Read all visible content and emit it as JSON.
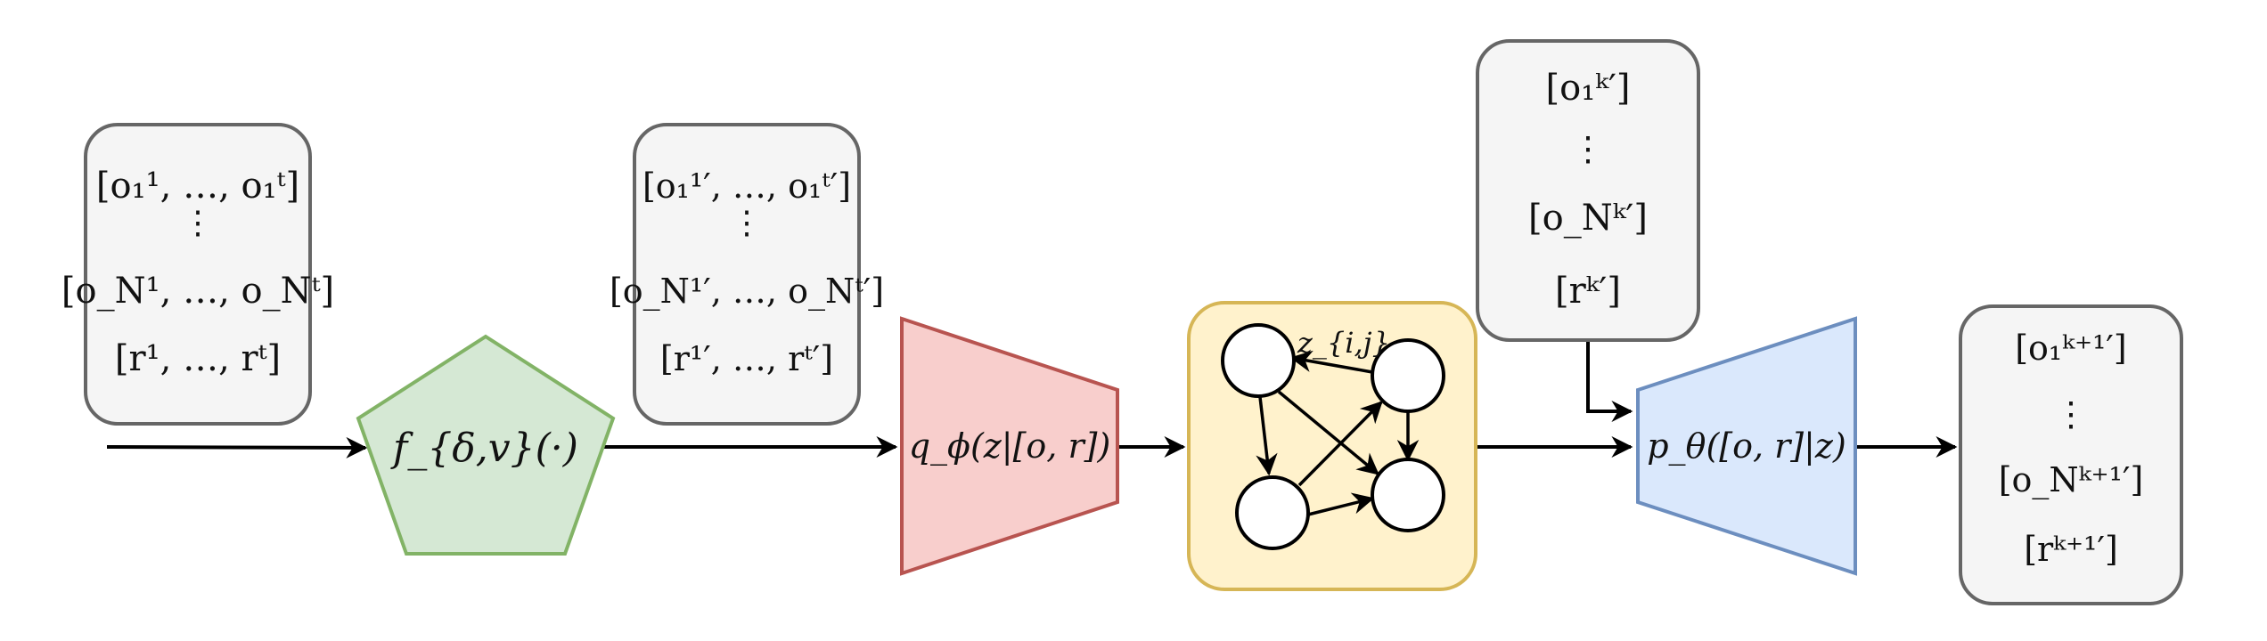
{
  "colors": {
    "box_fill": "#f5f5f5",
    "box_stroke": "#666666",
    "pentagon_fill": "#d5e8d4",
    "pentagon_stroke": "#82b366",
    "encoder_fill": "#f8cecc",
    "encoder_stroke": "#b85450",
    "graph_fill": "#fff2cc",
    "graph_stroke": "#d6b656",
    "decoder_fill": "#dae8fc",
    "decoder_stroke": "#6c8ebf",
    "arrow": "#000000"
  },
  "input_box": {
    "obs_first": "[o₁¹, …, o₁ᵗ]",
    "obs_last": "[o_N¹, …, o_Nᵗ]",
    "rewards": "[r¹, …, rᵗ]"
  },
  "transform": {
    "label": "f_{δ,v}(·)"
  },
  "transformed_box": {
    "obs_first": "[o₁¹′, …, o₁ᵗ′]",
    "obs_last": "[o_N¹′, …, o_Nᵗ′]",
    "rewards": "[r¹′, …, rᵗ′]"
  },
  "encoder": {
    "label": "q_ϕ(z|[o, r])"
  },
  "graph": {
    "edge_label": "z_{i,j}"
  },
  "query_box": {
    "obs_first": "[o₁ᵏ′]",
    "obs_last": "[o_Nᵏ′]",
    "rewards": "[rᵏ′]"
  },
  "decoder": {
    "label": "p_θ([o, r]|z)"
  },
  "output_box": {
    "obs_first": "[o₁ᵏ⁺¹′]",
    "obs_last": "[o_Nᵏ⁺¹′]",
    "rewards": "[rᵏ⁺¹′]"
  }
}
